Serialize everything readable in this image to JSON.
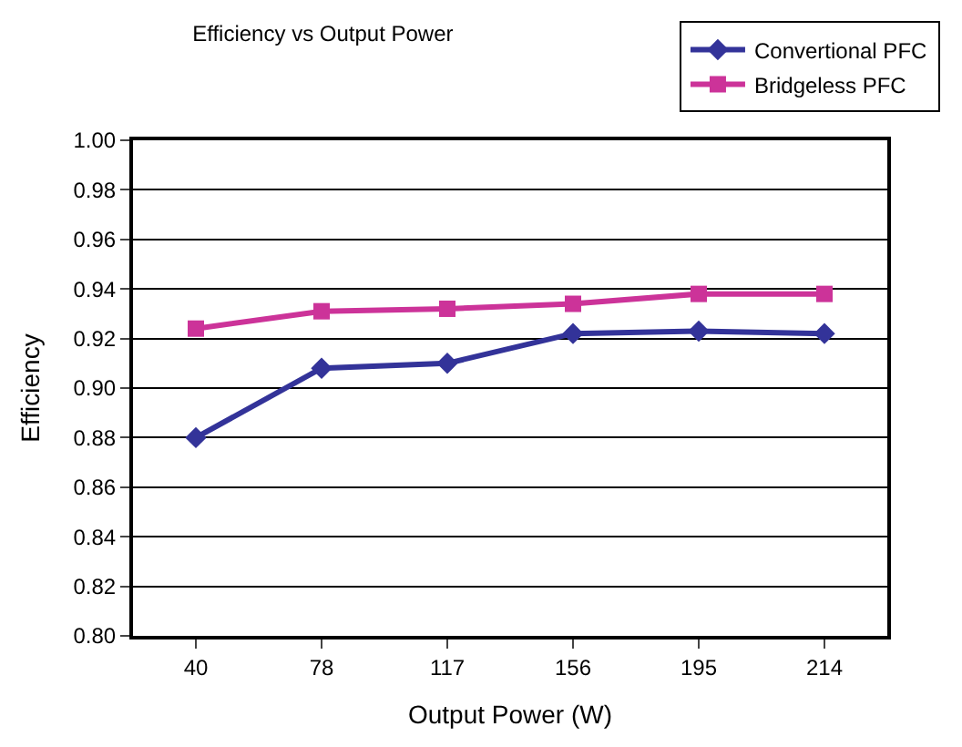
{
  "chart_data": {
    "type": "line",
    "title": "Efficiency vs Output Power",
    "xlabel": "Output Power (W)",
    "ylabel": "Efficiency",
    "categories": [
      "40",
      "78",
      "117",
      "156",
      "195",
      "214"
    ],
    "series": [
      {
        "name": "Convertional PFC",
        "color": "#333399",
        "marker": "diamond",
        "values": [
          0.88,
          0.908,
          0.91,
          0.922,
          0.923,
          0.922
        ]
      },
      {
        "name": "Bridgeless PFC",
        "color": "#cc3399",
        "marker": "square",
        "values": [
          0.924,
          0.931,
          0.932,
          0.934,
          0.938,
          0.938
        ]
      }
    ],
    "ylim": [
      0.8,
      1.0
    ],
    "yticks": [
      {
        "value": 0.8,
        "label": "0.80"
      },
      {
        "value": 0.82,
        "label": "0.82"
      },
      {
        "value": 0.84,
        "label": "0.84"
      },
      {
        "value": 0.86,
        "label": "0.86"
      },
      {
        "value": 0.88,
        "label": "0.88"
      },
      {
        "value": 0.9,
        "label": "0.90"
      },
      {
        "value": 0.92,
        "label": "0.92"
      },
      {
        "value": 0.94,
        "label": "0.94"
      },
      {
        "value": 0.96,
        "label": "0.96"
      },
      {
        "value": 0.98,
        "label": "0.98"
      },
      {
        "value": 1.0,
        "label": "1.00"
      }
    ],
    "grid": "y",
    "legend": "top right",
    "line_style": "solid"
  }
}
